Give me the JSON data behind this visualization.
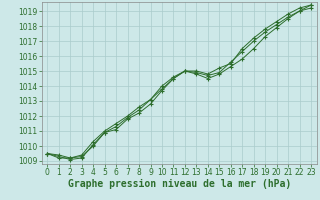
{
  "title": "",
  "xlabel": "Graphe pression niveau de la mer (hPa)",
  "bg_color": "#cde8e8",
  "grid_color": "#aacccc",
  "line_color": "#2d6e2d",
  "xlim": [
    -0.5,
    23.5
  ],
  "ylim": [
    1008.8,
    1019.6
  ],
  "yticks": [
    1009,
    1010,
    1011,
    1012,
    1013,
    1014,
    1015,
    1016,
    1017,
    1018,
    1019
  ],
  "xticks": [
    0,
    1,
    2,
    3,
    4,
    5,
    6,
    7,
    8,
    9,
    10,
    11,
    12,
    13,
    14,
    15,
    16,
    17,
    18,
    19,
    20,
    21,
    22,
    23
  ],
  "series1": {
    "x": [
      0,
      1,
      2,
      3,
      4,
      5,
      6,
      7,
      8,
      9,
      10,
      11,
      12,
      13,
      14,
      15,
      16,
      17,
      18,
      19,
      20,
      21,
      22,
      23
    ],
    "y": [
      1009.5,
      1009.4,
      1009.2,
      1009.4,
      1010.3,
      1011.0,
      1011.5,
      1012.0,
      1012.6,
      1013.1,
      1014.0,
      1014.6,
      1015.0,
      1015.0,
      1014.8,
      1015.2,
      1015.5,
      1016.5,
      1017.2,
      1017.8,
      1018.3,
      1018.8,
      1019.2,
      1019.4
    ]
  },
  "series2": {
    "x": [
      0,
      1,
      2,
      3,
      4,
      5,
      6,
      7,
      8,
      9,
      10,
      11,
      12,
      13,
      14,
      15,
      16,
      17,
      18,
      19,
      20,
      21,
      22,
      23
    ],
    "y": [
      1009.5,
      1009.2,
      1009.2,
      1009.3,
      1010.0,
      1010.9,
      1011.1,
      1011.8,
      1012.2,
      1012.8,
      1013.7,
      1014.5,
      1015.0,
      1014.8,
      1014.5,
      1014.8,
      1015.3,
      1015.8,
      1016.5,
      1017.3,
      1017.9,
      1018.5,
      1019.0,
      1019.2
    ]
  },
  "series3": {
    "x": [
      0,
      2,
      3,
      4,
      5,
      6,
      7,
      8,
      9,
      10,
      11,
      12,
      13,
      14,
      15,
      16,
      17,
      18,
      19,
      20,
      21,
      22,
      23
    ],
    "y": [
      1009.5,
      1009.1,
      1009.2,
      1010.1,
      1010.9,
      1011.3,
      1011.9,
      1012.4,
      1013.1,
      1013.8,
      1014.5,
      1015.0,
      1014.9,
      1014.7,
      1014.9,
      1015.6,
      1016.3,
      1017.0,
      1017.6,
      1018.1,
      1018.6,
      1019.0,
      1019.4
    ]
  },
  "xlabel_fontsize": 7,
  "tick_fontsize": 5.5,
  "tick_color": "#2d6e2d",
  "spine_color": "#888888"
}
